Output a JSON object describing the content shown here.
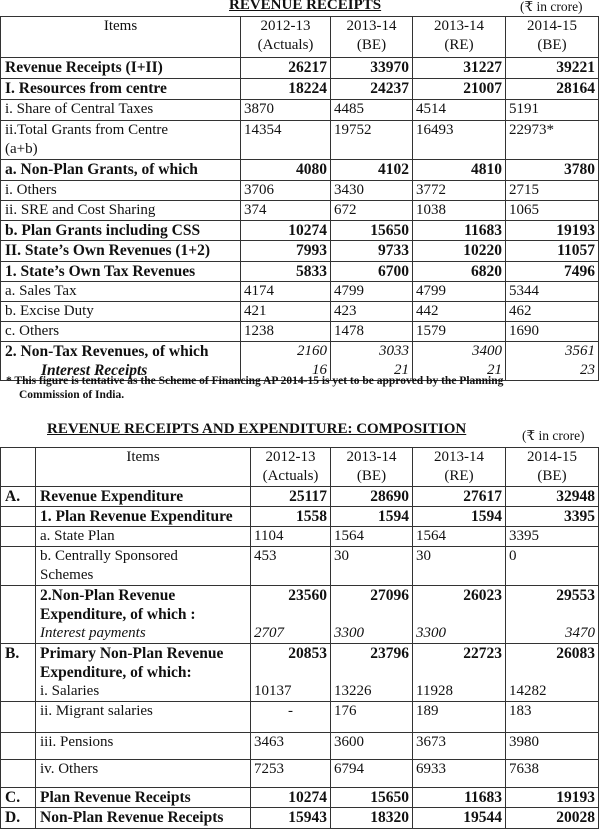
{
  "table1": {
    "title": "REVENUE RECEIPTS",
    "unit": "(₹ in crore)",
    "headers": [
      "Items",
      "2012-13\n(Actuals)",
      "2013-14\n(BE)",
      "2013-14\n(RE)",
      "2014-15\n(BE)"
    ],
    "rows": [
      {
        "label": "Revenue Receipts (I+II)",
        "values": [
          "26217",
          "33970",
          "31227",
          "39221"
        ],
        "style": "bold"
      },
      {
        "label": "I. Resources from centre",
        "values": [
          "18224",
          "24237",
          "21007",
          "28164"
        ],
        "style": "bold"
      },
      {
        "label": "i. Share of Central Taxes",
        "values": [
          "3870",
          "4485",
          "4514",
          "5191"
        ],
        "style": "plain"
      },
      {
        "label": "ii.Total Grants from Centre\n   (a+b)",
        "values": [
          "14354",
          "19752",
          "16493",
          "22973*"
        ],
        "style": "plain"
      },
      {
        "label": "a. Non-Plan Grants, of which",
        "values": [
          "4080",
          "4102",
          "4810",
          "3780"
        ],
        "style": "bold"
      },
      {
        "label": "i.  Others",
        "values": [
          "3706",
          "3430",
          "3772",
          "2715"
        ],
        "style": "plain"
      },
      {
        "label": "ii. SRE and Cost Sharing",
        "values": [
          "374",
          "672",
          "1038",
          "1065"
        ],
        "style": "plain"
      },
      {
        "label": "b. Plan Grants including CSS",
        "values": [
          "10274",
          "15650",
          "11683",
          "19193"
        ],
        "style": "bold"
      },
      {
        "label": "II. State’s  Own Revenues (1+2)",
        "values": [
          "7993",
          "9733",
          "10220",
          "11057"
        ],
        "style": "bold"
      },
      {
        "label": "1. State’s Own Tax Revenues",
        "values": [
          "5833",
          "6700",
          "6820",
          "7496"
        ],
        "style": "bold"
      },
      {
        "label": "a. Sales Tax",
        "values": [
          "4174",
          "4799",
          "4799",
          "5344"
        ],
        "style": "plain"
      },
      {
        "label": "b. Excise Duty",
        "values": [
          "421",
          "423",
          "442",
          "462"
        ],
        "style": "plain"
      },
      {
        "label": "c. Others",
        "values": [
          "1238",
          "1478",
          "1579",
          "1690"
        ],
        "style": "plain"
      },
      {
        "label": "2. Non-Tax Revenues, of which",
        "values": [
          "2160",
          "3033",
          "3400",
          "3561"
        ],
        "style": "bold-italicvals",
        "sub": {
          "label": "Interest Receipts",
          "values": [
            "16",
            "21",
            "21",
            "23"
          ]
        }
      }
    ],
    "footnote": "* This figure is tentative as the Scheme of Financing AP 2014-15 is yet to be approved  by the Planning",
    "footnote_cont": "Commission of  India."
  },
  "table2": {
    "title": "REVENUE RECEIPTS AND EXPENDITURE: COMPOSITION",
    "unit": "(₹ in crore)",
    "headers": [
      "",
      "Items",
      "2012-13\n(Actuals)",
      "2013-14\n(BE)",
      "2013-14\n(RE)",
      "2014-15\n(BE)"
    ],
    "rows": [
      {
        "letter": "A.",
        "label": "Revenue Expenditure",
        "values": [
          "25117",
          "28690",
          "27617",
          "32948"
        ],
        "style": "bold"
      },
      {
        "letter": "",
        "label": "1. Plan Revenue Expenditure",
        "values": [
          "1558",
          "1594",
          "1594",
          "3395"
        ],
        "style": "bold"
      },
      {
        "letter": "",
        "label": "a. State Plan",
        "values": [
          "1104",
          "1564",
          "1564",
          "3395"
        ],
        "style": "plain"
      },
      {
        "letter": "",
        "label": "b. Centrally Sponsored\n    Schemes",
        "values": [
          "453",
          "30",
          "30",
          "0"
        ],
        "style": "plain"
      },
      {
        "letter": "",
        "label": "2.Non-Plan Revenue\n   Expenditure, of which :",
        "values": [
          "23560",
          "27096",
          "26023",
          "29553"
        ],
        "style": "bold",
        "sub": {
          "label": "Interest payments",
          "values": [
            "2707",
            "3300",
            "3300",
            "3470"
          ],
          "style": "italic"
        }
      },
      {
        "letter": "B.",
        "label": "Primary Non-Plan Revenue\nExpenditure, of which:",
        "values": [
          "20853",
          "23796",
          "22723",
          "26083"
        ],
        "style": "bold",
        "sub": {
          "label": "i.   Salaries",
          "values": [
            "10137",
            "13226",
            "11928",
            "14282"
          ],
          "style": "plain"
        }
      },
      {
        "letter": "",
        "label": "ii.  Migrant salaries",
        "values": [
          "-",
          "176",
          "189",
          "183"
        ],
        "style": "plain"
      },
      {
        "letter": "",
        "label": "iii. Pensions",
        "values": [
          "3463",
          "3600",
          "3673",
          "3980"
        ],
        "style": "plain"
      },
      {
        "letter": "",
        "label": "iv. Others",
        "values": [
          "7253",
          "6794",
          "6933",
          "7638"
        ],
        "style": "plain"
      },
      {
        "letter": "C.",
        "label": "Plan Revenue Receipts",
        "values": [
          "10274",
          "15650",
          "11683",
          "19193"
        ],
        "style": "bold"
      },
      {
        "letter": "D.",
        "label": "Non-Plan Revenue Receipts",
        "values": [
          "15943",
          "18320",
          "19544",
          "20028"
        ],
        "style": "bold"
      }
    ]
  }
}
